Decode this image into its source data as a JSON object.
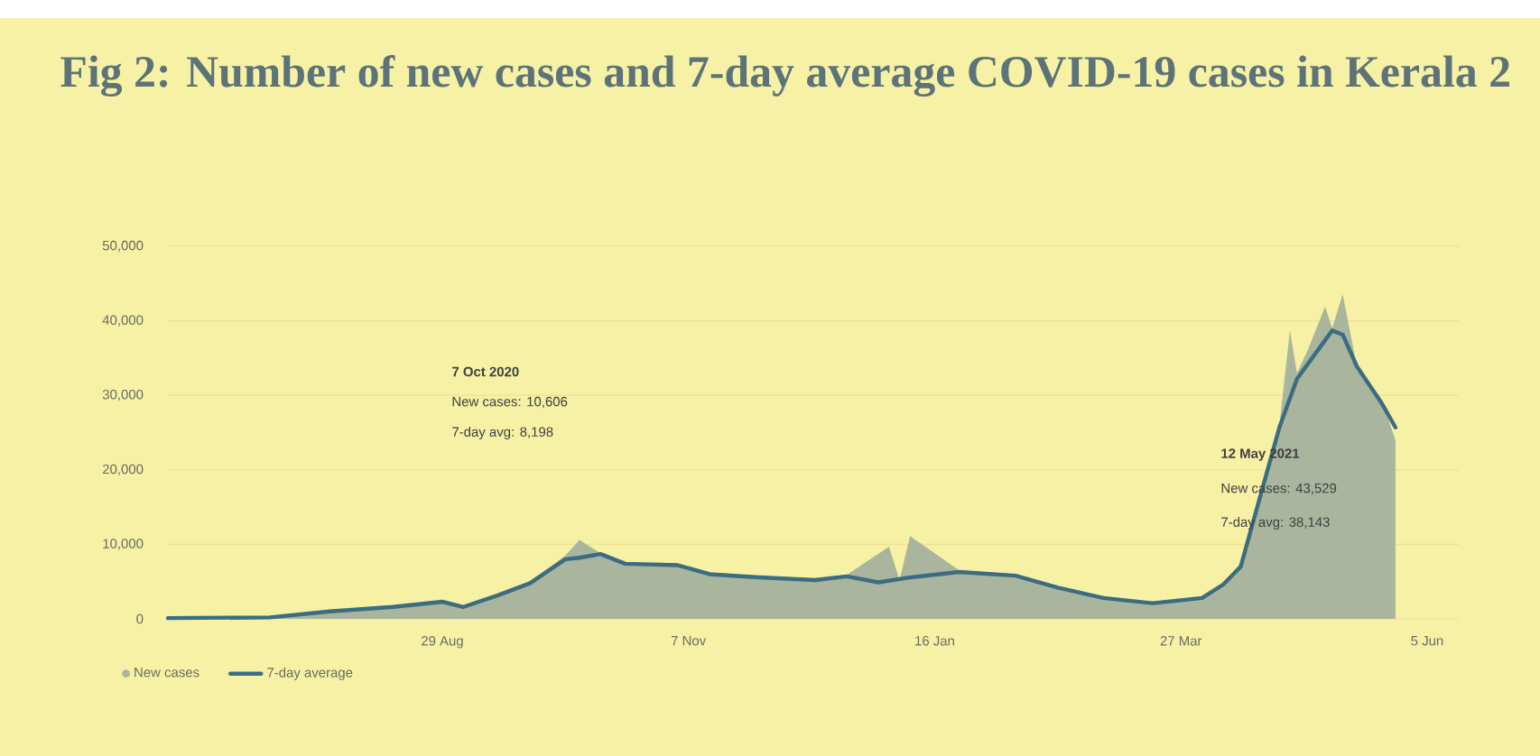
{
  "chart_data": {
    "type": "line",
    "title": "Fig 2: Number of new cases and 7-day average COVID-19 cases in Kerala 2",
    "xlim": [
      "2020-06-12",
      "2021-06-14"
    ],
    "xticks": [
      {
        "value": "2020-08-29",
        "label": "29 Aug"
      },
      {
        "value": "2020-11-07",
        "label": "7 Nov"
      },
      {
        "value": "2021-01-16",
        "label": "16 Jan"
      },
      {
        "value": "2021-03-27",
        "label": "27 Mar"
      },
      {
        "value": "2021-06-05",
        "label": "5 Jun"
      }
    ],
    "ylim": [
      0,
      50000
    ],
    "yticks": [
      0,
      {
        "value": 10000,
        "label": "10,000"
      },
      {
        "value": 20000,
        "label": "20,000"
      },
      {
        "value": 30000,
        "label": "30,000"
      },
      {
        "value": 40000,
        "label": "40,000"
      },
      {
        "value": 50000,
        "label": "50,000"
      }
    ],
    "grid": "y",
    "legend": "bottom left",
    "series": [
      {
        "name": "New cases",
        "type": "area",
        "color": "#a9b59c",
        "x": [
          "2020-06-12",
          "2020-07-11",
          "2020-07-28",
          "2020-08-15",
          "2020-08-29",
          "2020-09-04",
          "2020-09-14",
          "2020-09-23",
          "2020-10-03",
          "2020-10-07",
          "2020-10-13",
          "2020-10-20",
          "2020-11-04",
          "2020-11-13",
          "2020-11-26",
          "2020-12-13",
          "2020-12-22",
          "2021-01-03",
          "2021-01-06",
          "2021-01-09",
          "2021-01-23",
          "2021-02-08",
          "2021-02-20",
          "2021-03-05",
          "2021-03-19",
          "2021-04-02",
          "2021-04-08",
          "2021-04-13",
          "2021-04-24",
          "2021-04-27",
          "2021-04-29",
          "2021-05-02",
          "2021-05-07",
          "2021-05-09",
          "2021-05-12",
          "2021-05-16",
          "2021-05-23",
          "2021-05-27"
        ],
        "values": [
          100,
          300,
          1100,
          1700,
          2400,
          1500,
          3300,
          5000,
          8500,
          10606,
          8800,
          7600,
          7300,
          6200,
          5800,
          5400,
          5900,
          9700,
          5200,
          11100,
          6500,
          6000,
          4400,
          2900,
          2200,
          2900,
          4800,
          7500,
          26000,
          38700,
          33000,
          36000,
          41900,
          39000,
          43529,
          34000,
          29500,
          24000
        ]
      },
      {
        "name": "7-day average",
        "color": "#3b6c82",
        "x": [
          "2020-06-12",
          "2020-07-11",
          "2020-07-28",
          "2020-08-15",
          "2020-08-29",
          "2020-09-04",
          "2020-09-14",
          "2020-09-23",
          "2020-10-03",
          "2020-10-07",
          "2020-10-13",
          "2020-10-20",
          "2020-11-04",
          "2020-11-13",
          "2020-11-26",
          "2020-12-13",
          "2020-12-22",
          "2020-12-31",
          "2021-01-08",
          "2021-01-23",
          "2021-02-08",
          "2021-02-20",
          "2021-03-05",
          "2021-03-19",
          "2021-04-02",
          "2021-04-08",
          "2021-04-13",
          "2021-04-24",
          "2021-04-29",
          "2021-05-09",
          "2021-05-12",
          "2021-05-16",
          "2021-05-23",
          "2021-05-27"
        ],
        "values": [
          100,
          200,
          1000,
          1600,
          2300,
          1600,
          3200,
          4800,
          8000,
          8198,
          8700,
          7400,
          7200,
          6000,
          5600,
          5200,
          5700,
          4900,
          5500,
          6300,
          5800,
          4200,
          2800,
          2100,
          2800,
          4600,
          7000,
          25700,
          32200,
          38700,
          38143,
          33900,
          29000,
          25700
        ]
      }
    ],
    "annotations": [
      "7 Oct 2020",
      "New cases: 10,606",
      "7-day avg: 8,198",
      "12 May 2021",
      "New cases: 43,529",
      "7-day avg: 38,143"
    ]
  }
}
